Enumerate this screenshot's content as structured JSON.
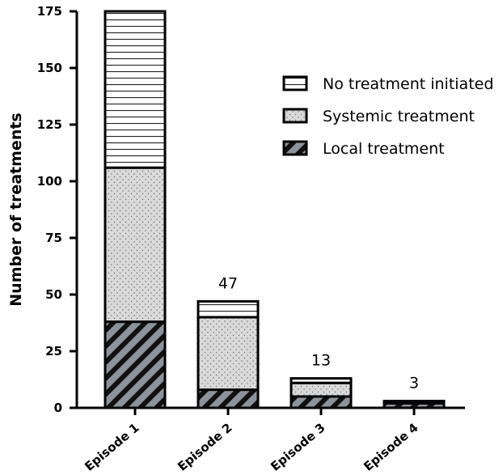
{
  "chart_data": {
    "type": "bar",
    "stacked": true,
    "categories": [
      "Episode 1",
      "Episode 2",
      "Episode 3",
      "Episode 4"
    ],
    "series": [
      {
        "name": "Local treatment",
        "values": [
          38,
          8,
          5,
          2
        ],
        "pattern": "diagonal-hatch",
        "color": "#8c939b"
      },
      {
        "name": "Systemic treatment",
        "values": [
          68,
          32,
          6,
          0
        ],
        "pattern": "dots",
        "color": "#d9d9d9"
      },
      {
        "name": "No treatment initiated",
        "values": [
          69,
          7,
          2,
          1
        ],
        "pattern": "horizontal-lines",
        "color": "#ffffff"
      }
    ],
    "totals": [
      "",
      "47",
      "13",
      "3"
    ],
    "ylabel": "Number of treatments",
    "xlabel": "",
    "ylim": [
      0,
      175
    ],
    "yticks": [
      0,
      25,
      50,
      75,
      100,
      125,
      150,
      175
    ],
    "legend_order": [
      "No treatment initiated",
      "Systemic treatment",
      "Local treatment"
    ],
    "legend_position": "top-right",
    "grid": false
  }
}
